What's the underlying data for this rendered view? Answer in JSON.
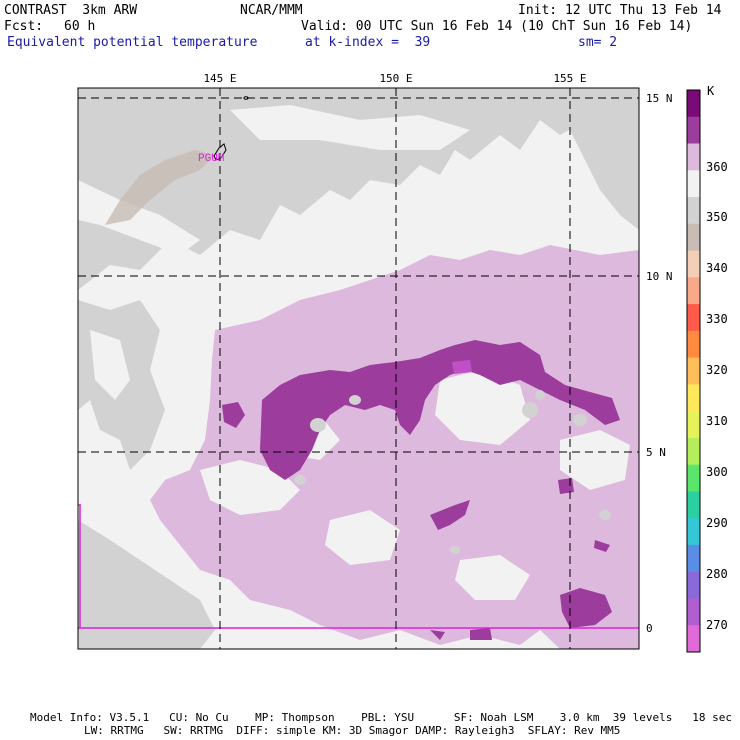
{
  "header": {
    "model": "CONTRAST  3km ARW",
    "org": "NCAR/MMM",
    "init": "Init: 12 UTC Thu 13 Feb 14",
    "fcst_label": "Fcst:",
    "fcst_value": "60 h",
    "valid": "Valid: 00 UTC Sun 16 Feb 14 (10 ChT Sun 16 Feb 14)",
    "field": "Equivalent potential temperature",
    "level": "at k-index =  39",
    "smoothing": "sm= 2"
  },
  "map": {
    "lon_labels": [
      "145 E",
      "150 E",
      "155 E"
    ],
    "lat_labels": [
      "15 N",
      "10 N",
      "5 N",
      "0"
    ],
    "station_label": "PGUM"
  },
  "colorbar": {
    "unit": "K",
    "labels": [
      "360",
      "350",
      "340",
      "330",
      "320",
      "310",
      "300",
      "290",
      "280",
      "270"
    ],
    "colors": [
      "#7a0a78",
      "#9c3c9c",
      "#ddb9dd",
      "#f2f2f2",
      "#d2d2d2",
      "#c8bcb4",
      "#f4cfb8",
      "#f9a98a",
      "#ff5a4a",
      "#ff8a40",
      "#ffbe5a",
      "#ffe85a",
      "#e6f25a",
      "#b4ee5a",
      "#5ae66a",
      "#2ad0a0",
      "#35c6d8",
      "#5a8ee6",
      "#8a6ad8",
      "#b05ed0",
      "#e06ad8"
    ]
  },
  "footer": {
    "line1": "Model Info: V3.5.1   CU: No Cu    MP: Thompson    PBL: YSU      SF: Noah LSM    3.0 km  39 levels   18 sec",
    "line2": "LW: RRTMG   SW: RRTMG  DIFF: simple KM: 3D Smagor DAMP: Rayleigh3  SFLAY: Rev MM5"
  },
  "palette": {
    "light_gray": "#d2d2d2",
    "near_white": "#f2f2f2",
    "light_purple": "#ddb9dd",
    "dark_purple": "#9c3c9c",
    "tan": "#c8bcb4",
    "magenta": "#e020e0"
  }
}
